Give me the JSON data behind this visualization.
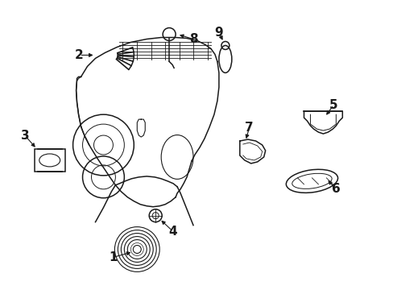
{
  "bg_color": "#ffffff",
  "line_color": "#1a1a1a",
  "fig_width": 4.89,
  "fig_height": 3.6,
  "dpi": 100,
  "font_size": 11
}
